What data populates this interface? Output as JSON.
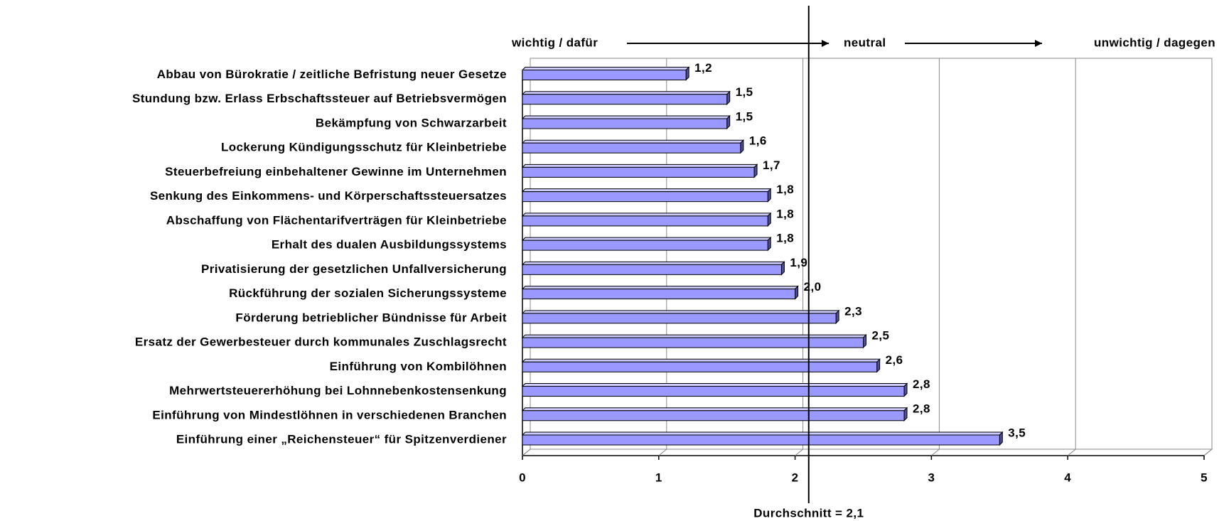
{
  "chart_data": {
    "type": "barh",
    "categories": [
      "Abbau von Bürokratie / zeitliche Befristung neuer Gesetze",
      "Stundung bzw. Erlass Erbschaftssteuer auf Betriebsvermögen",
      "Bekämpfung von Schwarzarbeit",
      "Lockerung Kündigungsschutz für Kleinbetriebe",
      "Steuerbefreiung einbehaltener Gewinne im Unternehmen",
      "Senkung des Einkommens- und Körperschaftssteuersatzes",
      "Abschaffung von Flächentarifverträgen für Kleinbetriebe",
      "Erhalt des dualen Ausbildungssystems",
      "Privatisierung der gesetzlichen Unfallversicherung",
      "Rückführung der sozialen Sicherungssysteme",
      "Förderung betrieblicher Bündnisse für Arbeit",
      "Ersatz der Gewerbesteuer durch kommunales Zuschlagsrecht",
      "Einführung von Kombilöhnen",
      "Mehrwertsteuererhöhung bei Lohnnebenkostensenkung",
      "Einführung von Mindestlöhnen in verschiedenen Branchen",
      "Einführung einer „Reichensteuer“ für Spitzenverdiener"
    ],
    "values": [
      1.2,
      1.5,
      1.5,
      1.6,
      1.7,
      1.8,
      1.8,
      1.8,
      1.9,
      2.0,
      2.3,
      2.5,
      2.6,
      2.8,
      2.8,
      3.5
    ],
    "value_labels": [
      "1,2",
      "1,5",
      "1,5",
      "1,6",
      "1,7",
      "1,8",
      "1,8",
      "1,8",
      "1,9",
      "2,0",
      "2,3",
      "2,5",
      "2,6",
      "2,8",
      "2,8",
      "3,5"
    ],
    "color": "#9999ff",
    "xlim": [
      0,
      5
    ],
    "xticks": [
      0,
      1,
      2,
      3,
      4,
      5
    ],
    "grid": true,
    "scale_labels": [
      "wichtig / dafür",
      "neutral",
      "unwichtig / dagegen"
    ],
    "reference_line": {
      "value": 2.1,
      "label": "Durchschnitt = 2,1"
    }
  }
}
